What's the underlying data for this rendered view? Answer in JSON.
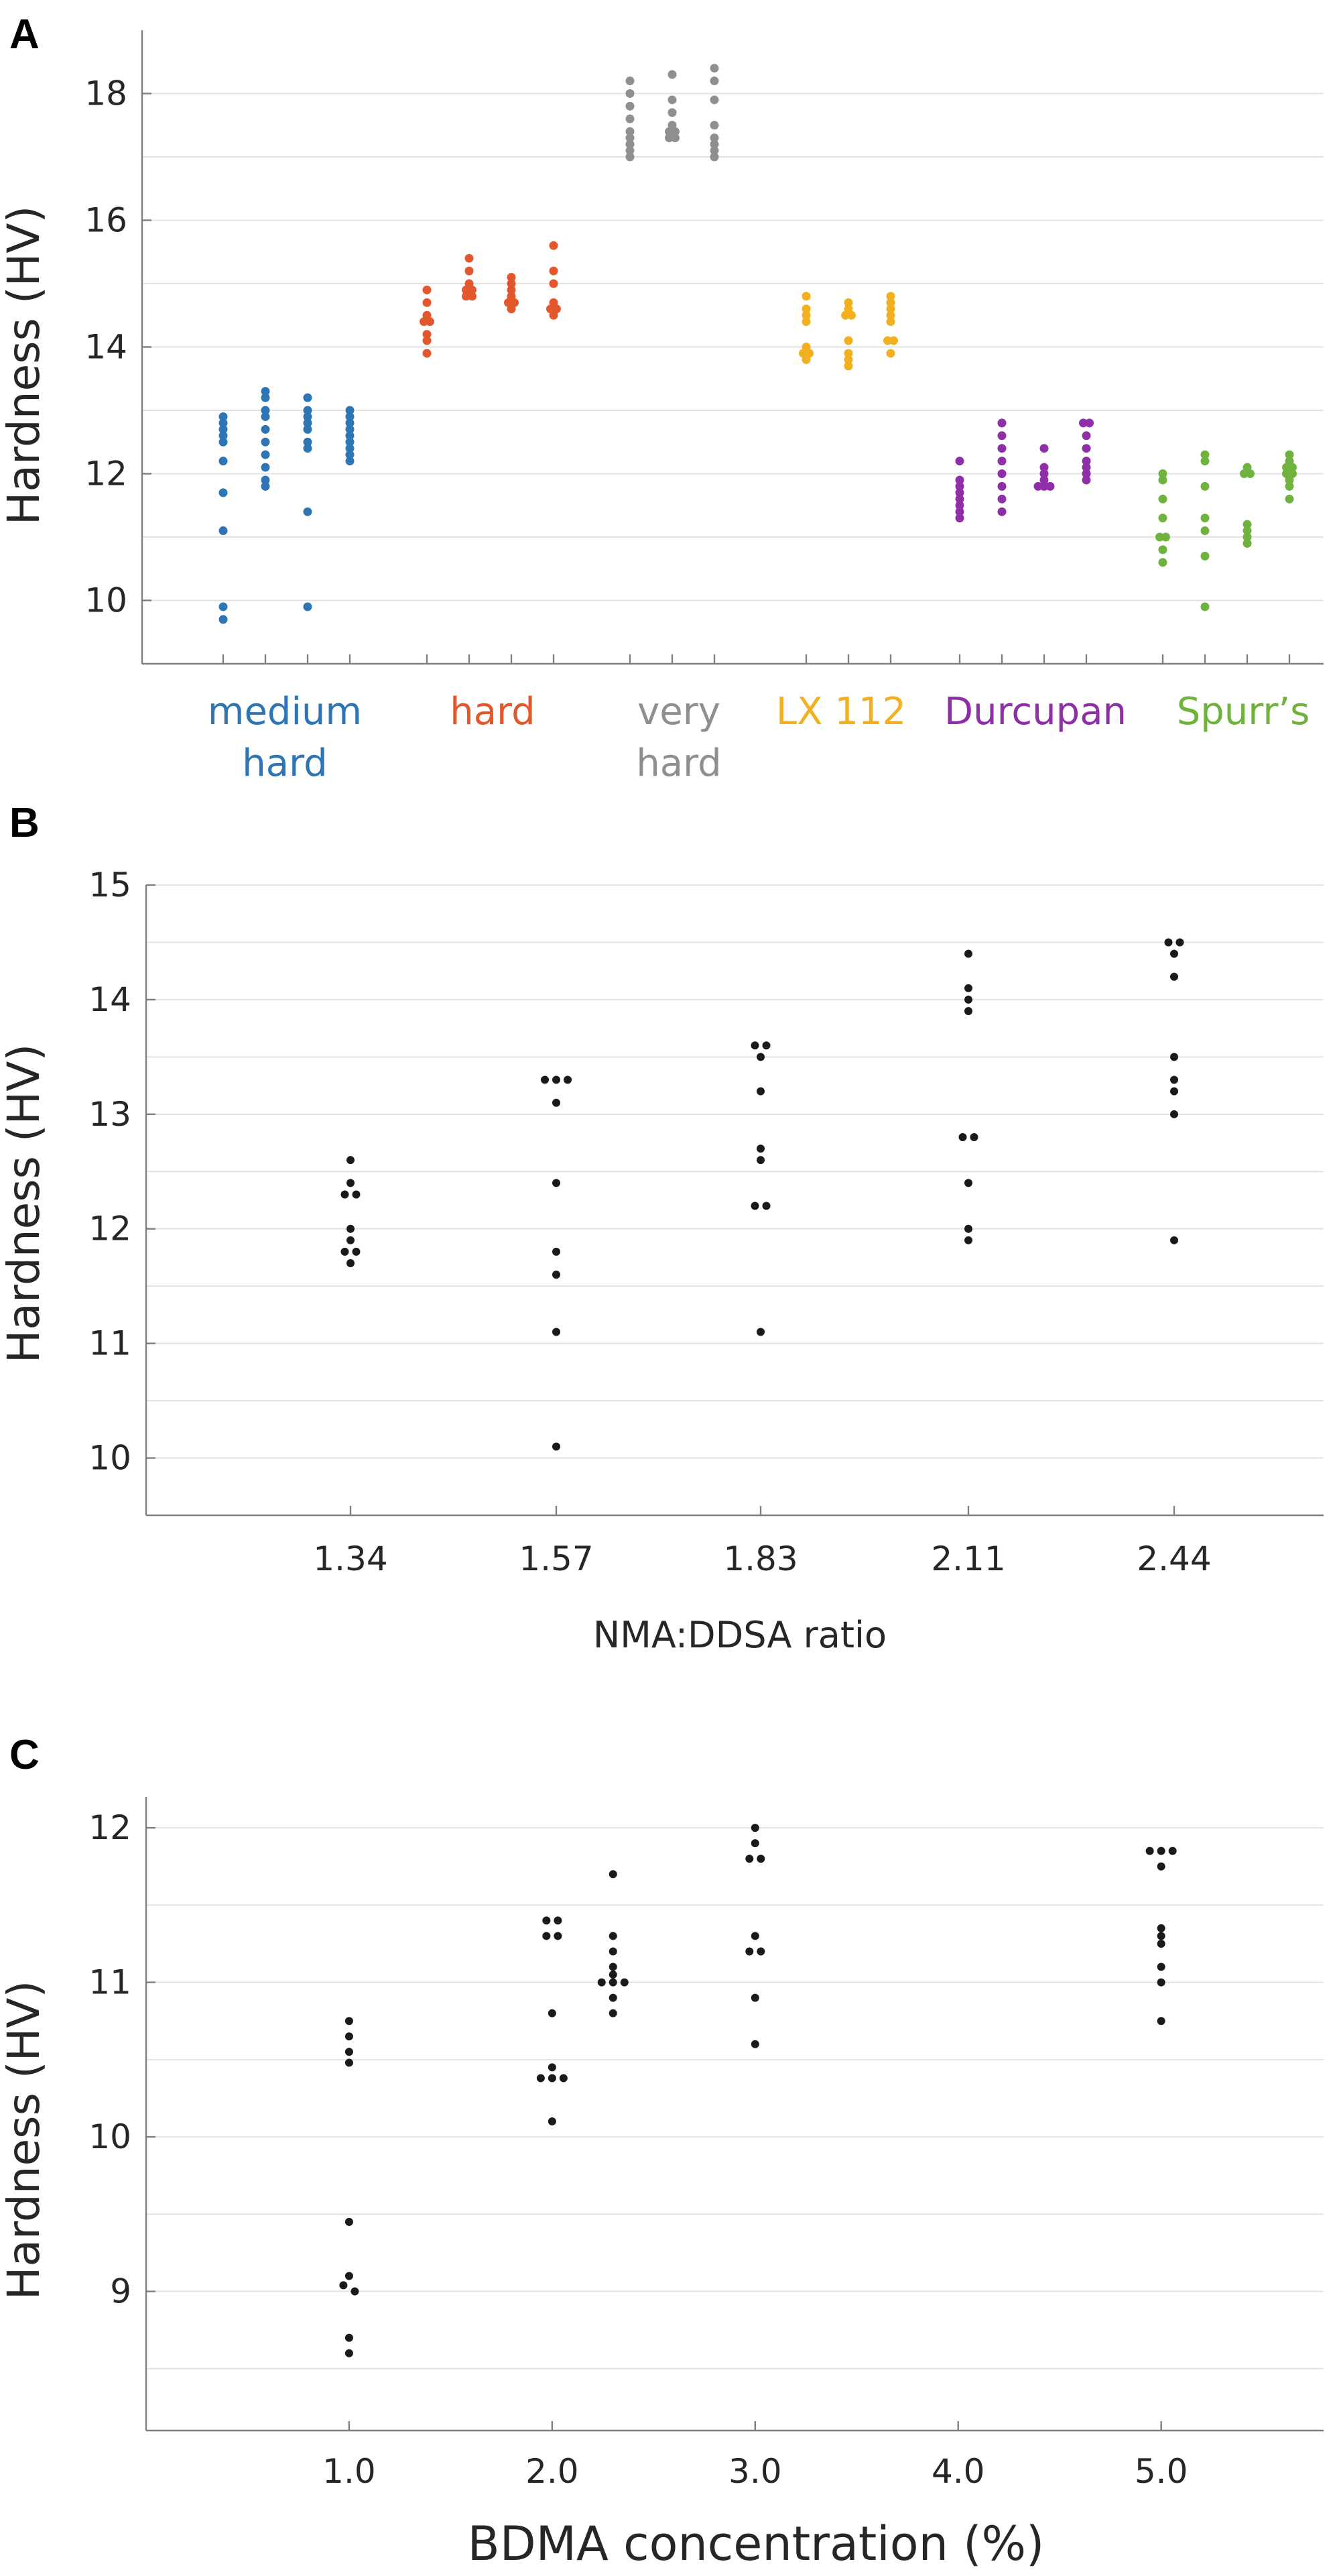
{
  "figure": {
    "panel_letters": [
      "A",
      "B",
      "C"
    ]
  },
  "chart_data": [
    {
      "panel": "A",
      "type": "scatter",
      "ylabel": "Hardness (HV)",
      "ylim": [
        9,
        19
      ],
      "yticks": [
        10,
        12,
        14,
        16,
        18
      ],
      "grid": true,
      "groups": [
        {
          "name": "medium hard",
          "label_lines": [
            "medium",
            "hard"
          ],
          "color": "#2e75b6",
          "replicates": [
            [
              12.9,
              12.8,
              12.7,
              12.6,
              12.5,
              12.2,
              11.7,
              11.1,
              9.9,
              9.7
            ],
            [
              13.3,
              13.2,
              13.0,
              12.9,
              12.7,
              12.5,
              12.3,
              12.1,
              11.9,
              11.8
            ],
            [
              13.2,
              13.0,
              12.9,
              12.8,
              12.7,
              12.5,
              12.4,
              11.4,
              9.9
            ],
            [
              13.0,
              12.9,
              12.8,
              12.7,
              12.6,
              12.5,
              12.4,
              12.3,
              12.2
            ]
          ]
        },
        {
          "name": "hard",
          "label_lines": [
            "hard"
          ],
          "color": "#e2572b",
          "replicates": [
            [
              14.9,
              14.7,
              14.5,
              14.4,
              14.4,
              14.2,
              14.1,
              13.9
            ],
            [
              15.4,
              15.2,
              15.0,
              14.9,
              14.9,
              14.8,
              14.8
            ],
            [
              15.1,
              15.0,
              14.9,
              14.8,
              14.7,
              14.7,
              14.6
            ],
            [
              15.6,
              15.2,
              15.0,
              14.7,
              14.6,
              14.6,
              14.5
            ]
          ]
        },
        {
          "name": "very hard",
          "label_lines": [
            "very",
            "hard"
          ],
          "color": "#8f8f8f",
          "replicates": [
            [
              18.2,
              18.0,
              17.8,
              17.6,
              17.4,
              17.3,
              17.2,
              17.1,
              17.0
            ],
            [
              18.3,
              17.9,
              17.7,
              17.5,
              17.4,
              17.4,
              17.3,
              17.3
            ],
            [
              18.4,
              18.2,
              17.9,
              17.5,
              17.3,
              17.2,
              17.1,
              17.0
            ]
          ]
        },
        {
          "name": "LX 112",
          "label_lines": [
            "LX 112"
          ],
          "color": "#f2b01e",
          "replicates": [
            [
              14.8,
              14.6,
              14.5,
              14.4,
              14.0,
              13.9,
              13.9,
              13.8
            ],
            [
              14.7,
              14.6,
              14.5,
              14.5,
              14.1,
              13.9,
              13.8,
              13.7
            ],
            [
              14.8,
              14.7,
              14.6,
              14.5,
              14.4,
              14.1,
              14.1,
              13.9
            ]
          ]
        },
        {
          "name": "Durcupan",
          "label_lines": [
            "Durcupan"
          ],
          "color": "#8e2fa8",
          "replicates": [
            [
              12.2,
              11.9,
              11.8,
              11.7,
              11.6,
              11.5,
              11.4,
              11.3
            ],
            [
              12.8,
              12.6,
              12.4,
              12.2,
              12.0,
              11.8,
              11.6,
              11.4
            ],
            [
              12.4,
              12.1,
              12.0,
              11.9,
              11.8,
              11.8,
              11.8
            ],
            [
              12.8,
              12.8,
              12.6,
              12.4,
              12.2,
              12.1,
              12.0,
              11.9
            ]
          ]
        },
        {
          "name": "Spurr's",
          "label_lines": [
            "Spurr’s"
          ],
          "color": "#6fb33e",
          "replicates": [
            [
              12.0,
              11.9,
              11.6,
              11.3,
              11.0,
              11.0,
              10.8,
              10.6
            ],
            [
              12.3,
              12.2,
              11.8,
              11.3,
              11.1,
              10.7,
              9.9
            ],
            [
              12.1,
              12.0,
              12.0,
              11.2,
              11.1,
              11.0,
              10.9
            ],
            [
              12.3,
              12.2,
              12.1,
              12.1,
              12.0,
              12.0,
              11.9,
              11.8,
              11.6
            ]
          ]
        }
      ]
    },
    {
      "panel": "B",
      "type": "scatter",
      "xlabel": "NMA:DDSA ratio",
      "ylabel": "Hardness (HV)",
      "ylim": [
        9.5,
        15
      ],
      "yticks": [
        10,
        11,
        12,
        13,
        14,
        15
      ],
      "grid": true,
      "categories": [
        "1.34",
        "1.57",
        "1.83",
        "2.11",
        "2.44"
      ],
      "color": "#1a1a1a",
      "values": [
        [
          12.6,
          12.4,
          12.3,
          12.3,
          12.0,
          11.9,
          11.8,
          11.8,
          11.7
        ],
        [
          13.3,
          13.3,
          13.3,
          13.1,
          12.4,
          11.8,
          11.6,
          11.1,
          10.1
        ],
        [
          13.6,
          13.6,
          13.5,
          13.2,
          12.7,
          12.6,
          12.2,
          12.2,
          11.1
        ],
        [
          14.4,
          14.1,
          14.0,
          13.9,
          12.8,
          12.8,
          12.4,
          12.0,
          11.9
        ],
        [
          14.5,
          14.5,
          14.4,
          14.2,
          13.5,
          13.3,
          13.2,
          13.0,
          11.9
        ]
      ]
    },
    {
      "panel": "C",
      "type": "scatter",
      "xlabel": "BDMA concentration (%)",
      "ylabel": "Hardness (HV)",
      "xlim": [
        0,
        5.8
      ],
      "ylim": [
        8.1,
        12.2
      ],
      "yticks": [
        9,
        10,
        11,
        12
      ],
      "grid": true,
      "xticks": [
        "1.0",
        "2.0",
        "3.0",
        "4.0",
        "5.0"
      ],
      "xtick_values": [
        1,
        2,
        3,
        4,
        5
      ],
      "color": "#1a1a1a",
      "groups": [
        {
          "x": 1.0,
          "values": [
            10.75,
            10.65,
            10.55,
            10.48,
            9.45,
            9.1,
            9.04,
            9.0,
            8.7,
            8.6
          ]
        },
        {
          "x": 2.0,
          "values": [
            11.4,
            11.4,
            11.3,
            11.3,
            10.8,
            10.45,
            10.38,
            10.38,
            10.38,
            10.1
          ]
        },
        {
          "x": 2.3,
          "values": [
            11.7,
            11.3,
            11.2,
            11.1,
            11.05,
            11.0,
            11.0,
            11.0,
            10.9,
            10.8
          ]
        },
        {
          "x": 3.0,
          "values": [
            12.0,
            11.9,
            11.8,
            11.8,
            11.3,
            11.2,
            11.2,
            10.9,
            10.6
          ]
        },
        {
          "x": 5.0,
          "values": [
            11.85,
            11.85,
            11.85,
            11.75,
            11.35,
            11.3,
            11.25,
            11.1,
            11.0,
            10.75
          ]
        }
      ]
    }
  ]
}
